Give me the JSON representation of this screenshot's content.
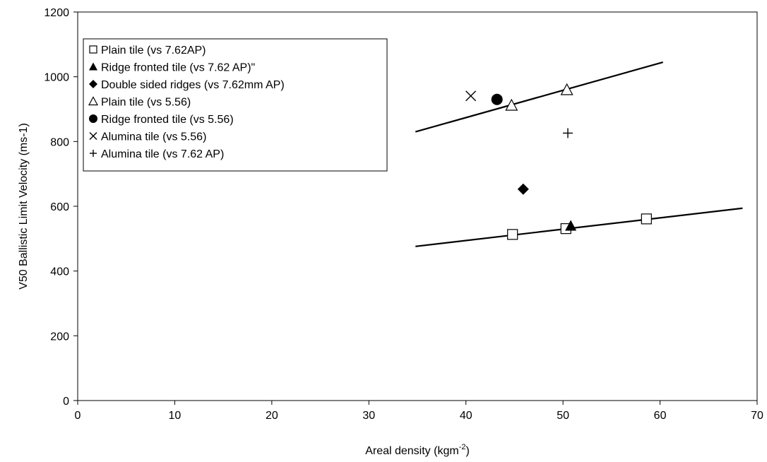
{
  "chart_data": {
    "type": "scatter",
    "title": "",
    "xlabel": "Areal density (kgm",
    "xlabel_sup": "-2",
    "xlabel_end": ")",
    "ylabel": "V50 Ballistic Limit Velocity (ms-1)",
    "xlim": [
      0,
      70
    ],
    "ylim": [
      0,
      1200
    ],
    "x_ticks": [
      "0",
      "10",
      "20",
      "30",
      "40",
      "50",
      "60",
      "70"
    ],
    "y_ticks": [
      "0",
      "200",
      "400",
      "600",
      "800",
      "1000",
      "1200"
    ],
    "grid": false,
    "legend_position": "top-left",
    "series": [
      {
        "name": "Plain tile (vs 7.62AP)",
        "marker": "square-open",
        "points": [
          [
            44.8,
            513
          ],
          [
            50.3,
            531
          ],
          [
            58.6,
            561
          ]
        ]
      },
      {
        "name": "Ridge fronted tile (vs 7.62 AP)\"",
        "marker": "triangle-filled",
        "points": [
          [
            50.8,
            540
          ]
        ]
      },
      {
        "name": "Double sided ridges (vs 7.62mm AP)",
        "marker": "diamond-filled",
        "points": [
          [
            45.9,
            653
          ]
        ]
      },
      {
        "name": "Plain tile (vs 5.56)",
        "marker": "triangle-open",
        "points": [
          [
            44.7,
            912
          ],
          [
            50.4,
            960
          ]
        ]
      },
      {
        "name": "Ridge fronted tile (vs 5.56)",
        "marker": "circle-filled",
        "points": [
          [
            43.2,
            930
          ]
        ]
      },
      {
        "name": "Alumina tile (vs 5.56)",
        "marker": "x",
        "points": [
          [
            40.5,
            941
          ]
        ]
      },
      {
        "name": "Alumina tile (vs 7.62 AP)",
        "marker": "plus",
        "points": [
          [
            50.5,
            826
          ]
        ]
      }
    ],
    "trendlines": [
      {
        "from": [
          34.8,
          830
        ],
        "to": [
          60.3,
          1045
        ]
      },
      {
        "from": [
          34.8,
          476
        ],
        "to": [
          68.5,
          594
        ]
      }
    ]
  }
}
